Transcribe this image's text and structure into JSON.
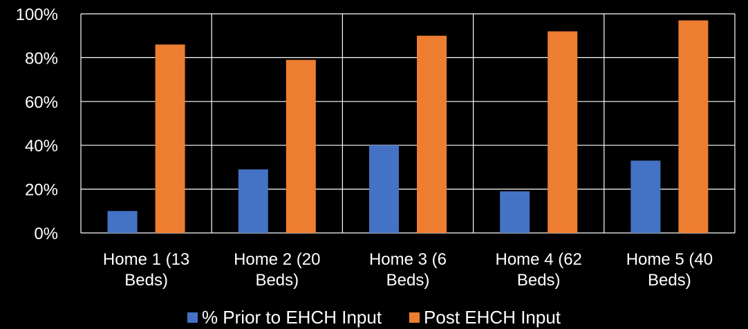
{
  "chart_data": {
    "type": "bar",
    "categories": [
      [
        "Home 1 (13",
        "Beds)"
      ],
      [
        "Home 2 (20",
        "Beds)"
      ],
      [
        "Home 3 (6",
        "Beds)"
      ],
      [
        "Home 4 (62",
        "Beds)"
      ],
      [
        "Home 5 (40",
        "Beds)"
      ]
    ],
    "series": [
      {
        "name": "% Prior to EHCH Input",
        "color": "#4472C4",
        "values": [
          10,
          29,
          40,
          19,
          33
        ]
      },
      {
        "name": "Post EHCH Input",
        "color": "#ED7D31",
        "values": [
          86,
          79,
          90,
          92,
          97
        ]
      }
    ],
    "yticks": [
      "0%",
      "20%",
      "40%",
      "60%",
      "80%",
      "100%"
    ],
    "ylim": [
      0,
      100
    ],
    "grid": true,
    "legend": "bottom",
    "background": "#000000",
    "text_color": "#FFFFFF"
  }
}
